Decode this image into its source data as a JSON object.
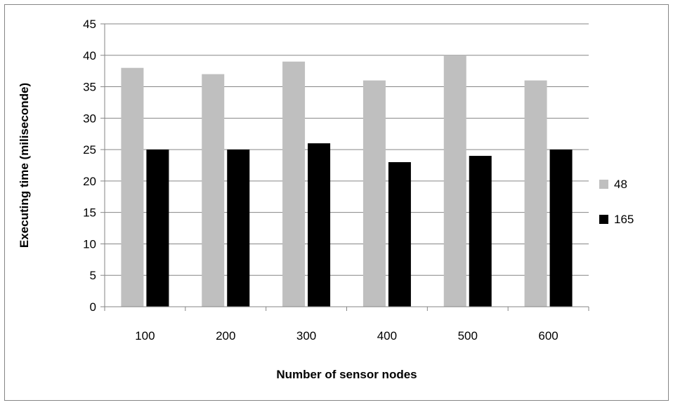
{
  "chart_data": {
    "type": "bar",
    "categories": [
      "100",
      "200",
      "300",
      "400",
      "500",
      "600"
    ],
    "series": [
      {
        "name": "48",
        "values": [
          38,
          37,
          39,
          36,
          40,
          36
        ],
        "color": "#bfbfbf"
      },
      {
        "name": "165",
        "values": [
          25,
          25,
          26,
          23,
          24,
          25
        ],
        "color": "#000000"
      }
    ],
    "title": "",
    "xlabel": "Number of sensor nodes",
    "ylabel": "Executing time (miliseconde)",
    "ylim": [
      0,
      45
    ],
    "yticks": [
      "0",
      "5",
      "10",
      "15",
      "20",
      "25",
      "30",
      "35",
      "40",
      "45"
    ],
    "grid": "horizontal",
    "legend": "right"
  }
}
